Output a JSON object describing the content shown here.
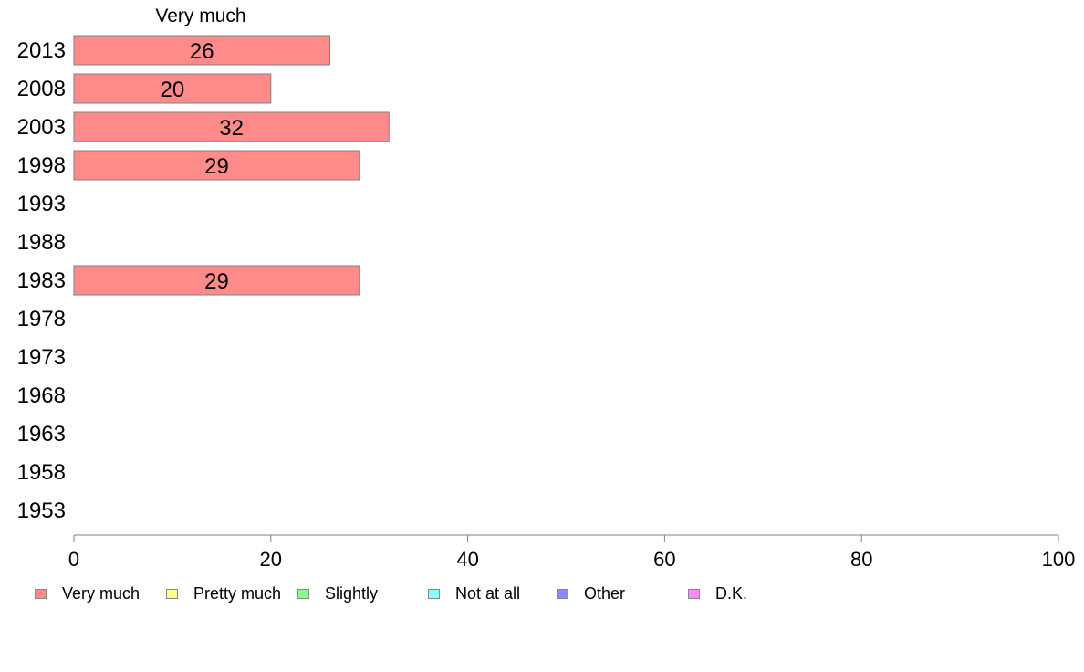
{
  "chart_data": {
    "type": "bar",
    "orientation": "horizontal",
    "series_title": "Very much",
    "categories": [
      "2013",
      "2008",
      "2003",
      "1998",
      "1993",
      "1988",
      "1983",
      "1978",
      "1973",
      "1968",
      "1963",
      "1958",
      "1953"
    ],
    "series": [
      {
        "name": "Very much",
        "color": "#ff8a8a",
        "values": [
          26,
          20,
          32,
          29,
          null,
          null,
          29,
          null,
          null,
          null,
          null,
          null,
          null
        ],
        "data_labels": [
          "26",
          "20",
          "32",
          "29",
          "",
          "",
          "29",
          "",
          "",
          "",
          "",
          "",
          ""
        ]
      }
    ],
    "xlim": [
      0,
      100
    ],
    "x_ticks": [
      "0",
      "20",
      "40",
      "60",
      "80",
      "100"
    ],
    "grid": false,
    "legend_position": "bottom",
    "legend": [
      {
        "label": "Very much",
        "color": "#ff8a8a"
      },
      {
        "label": "Pretty much",
        "color": "#ffff8a"
      },
      {
        "label": "Slightly",
        "color": "#8aff8a"
      },
      {
        "label": "Not at all",
        "color": "#8affff"
      },
      {
        "label": "Other",
        "color": "#8a8aff"
      },
      {
        "label": "D.K.",
        "color": "#ff8aff"
      }
    ]
  }
}
